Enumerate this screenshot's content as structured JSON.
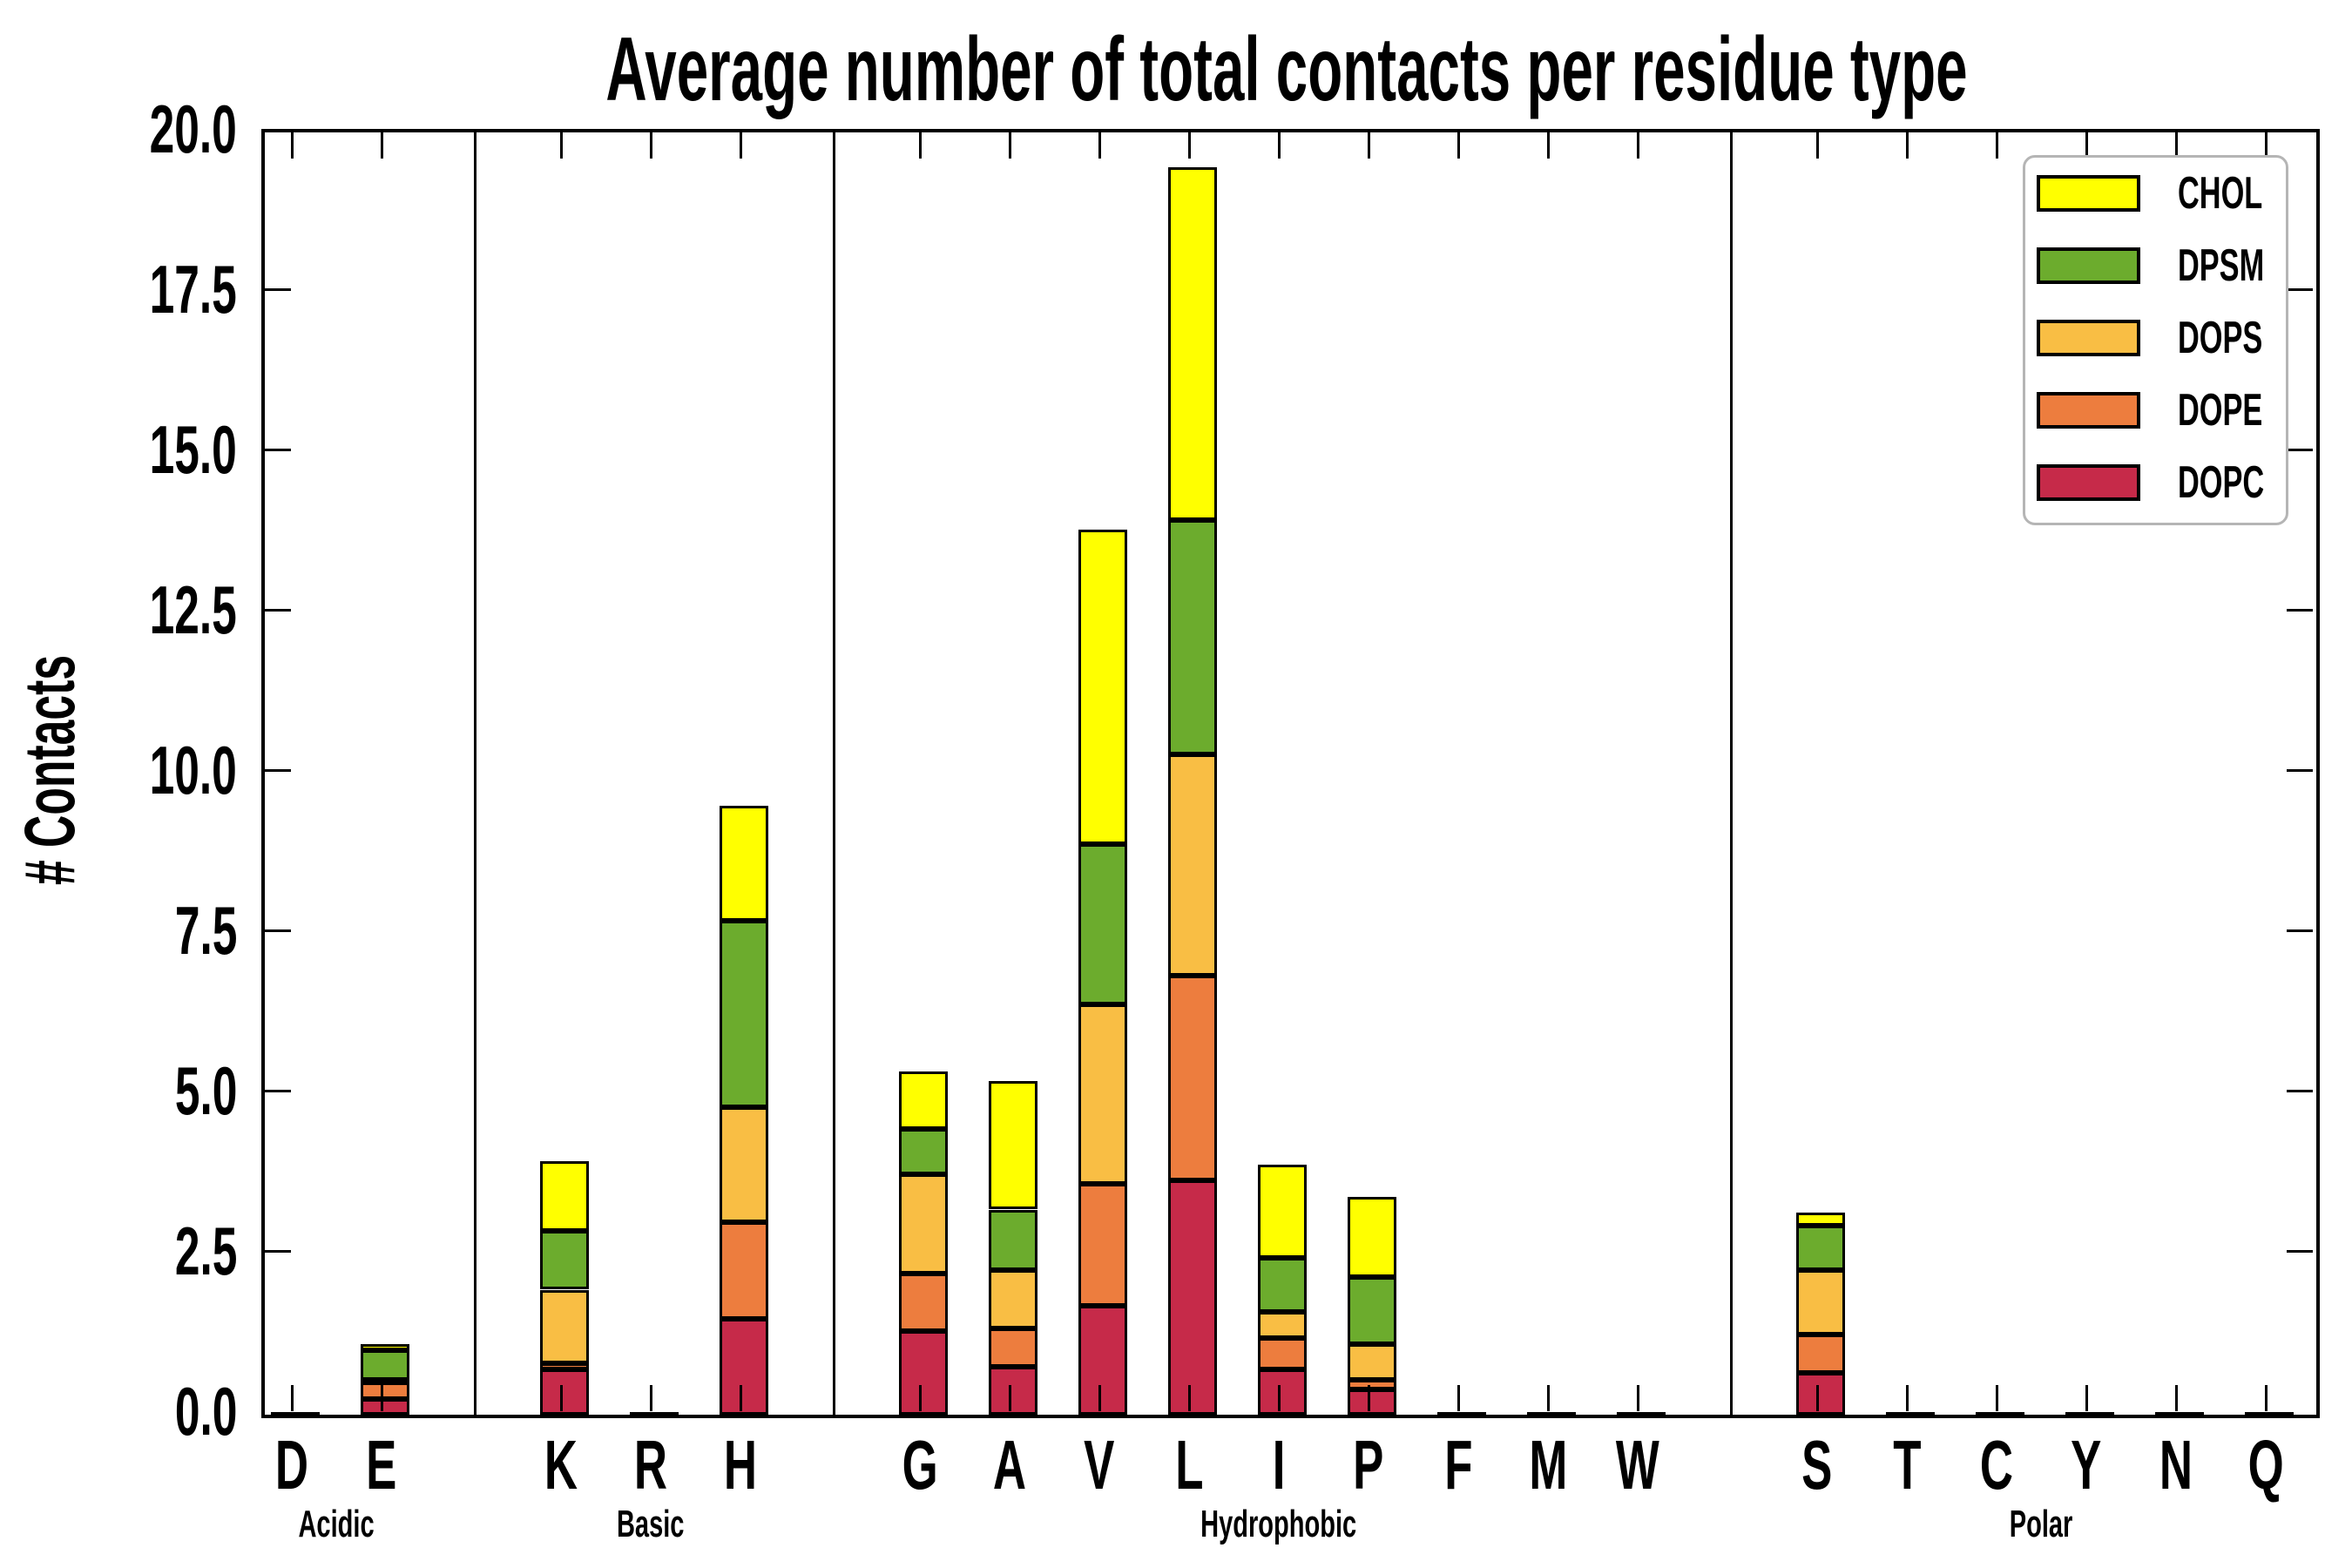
{
  "figure": {
    "title": "Average number of total contacts per residue type",
    "ylabel": "# Contacts"
  },
  "chart_data": {
    "type": "bar",
    "subtype": "stacked_bar",
    "title": "Average number of total contacts per residue type",
    "xlabel": "",
    "ylabel": "# Contacts",
    "ylim": [
      0,
      20
    ],
    "ytick_step": 2.5,
    "ytick_labels": [
      "0.0",
      "2.5",
      "5.0",
      "7.5",
      "10.0",
      "12.5",
      "15.0",
      "17.5",
      "20.0"
    ],
    "grid": false,
    "tick_direction": "in",
    "legend": {
      "position": "upper-right",
      "entries_top_to_bottom": [
        "CHOL",
        "DPSM",
        "DOPS",
        "DOPE",
        "DOPC"
      ]
    },
    "series_bottom_to_top": [
      {
        "name": "DOPC",
        "color": "#C62A49"
      },
      {
        "name": "DOPE",
        "color": "#ED7D3E"
      },
      {
        "name": "DOPS",
        "color": "#F9BE44"
      },
      {
        "name": "DPSM",
        "color": "#6CAC2D"
      },
      {
        "name": "CHOL",
        "color": "#FFFF00"
      }
    ],
    "groups": [
      {
        "label": "Acidic",
        "categories": [
          "D",
          "E"
        ]
      },
      {
        "label": "Basic",
        "categories": [
          "K",
          "R",
          "H"
        ]
      },
      {
        "label": "Hydrophobic",
        "categories": [
          "G",
          "A",
          "V",
          "L",
          "I",
          "P",
          "F",
          "M",
          "W"
        ]
      },
      {
        "label": "Polar",
        "categories": [
          "S",
          "T",
          "C",
          "Y",
          "N",
          "Q"
        ]
      }
    ],
    "categories": [
      "D",
      "E",
      "K",
      "R",
      "H",
      "G",
      "A",
      "V",
      "L",
      "I",
      "P",
      "F",
      "M",
      "W",
      "S",
      "T",
      "C",
      "Y",
      "N",
      "Q"
    ],
    "values_order": [
      "DOPC",
      "DOPE",
      "DOPS",
      "DPSM",
      "CHOL"
    ],
    "values": {
      "D": [
        0.02,
        0.0,
        0.0,
        0.0,
        0.0
      ],
      "E": [
        0.25,
        0.25,
        0.05,
        0.45,
        0.1
      ],
      "K": [
        0.7,
        0.1,
        1.15,
        0.92,
        1.08
      ],
      "R": [
        0.02,
        0.0,
        0.0,
        0.0,
        0.0
      ],
      "H": [
        1.5,
        1.5,
        1.8,
        2.9,
        1.8
      ],
      "G": [
        1.3,
        0.9,
        1.55,
        0.7,
        0.9
      ],
      "A": [
        0.75,
        0.6,
        0.9,
        0.95,
        2.0
      ],
      "V": [
        1.7,
        1.9,
        2.8,
        2.5,
        4.9
      ],
      "L": [
        3.65,
        3.2,
        3.45,
        3.65,
        5.5
      ],
      "I": [
        0.7,
        0.5,
        0.4,
        0.85,
        1.45
      ],
      "P": [
        0.4,
        0.15,
        0.55,
        1.05,
        1.25
      ],
      "F": [
        0.02,
        0.0,
        0.0,
        0.0,
        0.0
      ],
      "M": [
        0.02,
        0.0,
        0.0,
        0.0,
        0.0
      ],
      "W": [
        0.02,
        0.0,
        0.0,
        0.0,
        0.0
      ],
      "S": [
        0.65,
        0.6,
        1.0,
        0.7,
        0.2
      ],
      "T": [
        0.02,
        0.0,
        0.0,
        0.0,
        0.0
      ],
      "C": [
        0.02,
        0.0,
        0.0,
        0.0,
        0.0
      ],
      "Y": [
        0.02,
        0.0,
        0.0,
        0.0,
        0.0
      ],
      "N": [
        0.02,
        0.0,
        0.0,
        0.0,
        0.0
      ],
      "Q": [
        0.02,
        0.0,
        0.0,
        0.0,
        0.0
      ]
    },
    "colors": {
      "axis": "#000000",
      "background": "#ffffff",
      "legend_border": "#b5b5b5"
    }
  }
}
